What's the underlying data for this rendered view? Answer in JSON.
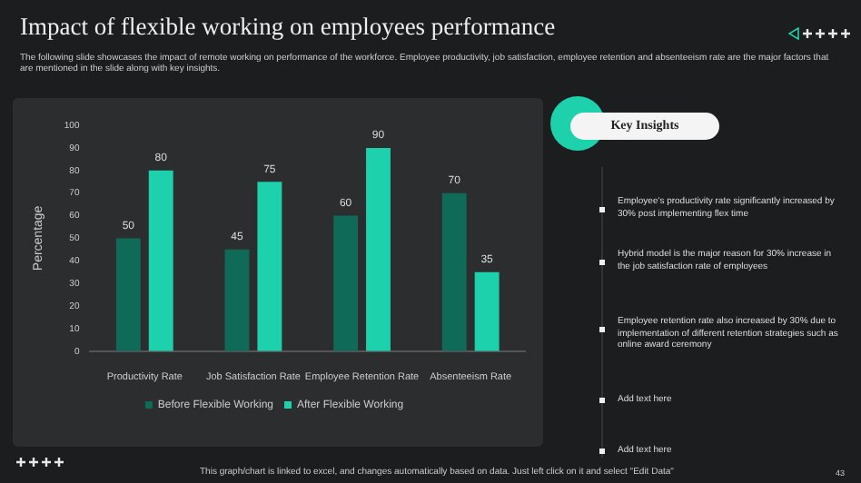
{
  "chart_data": {
    "type": "bar",
    "title": "Impact of flexible working on employees performance",
    "subtitle": "The following slide showcases the impact of remote working on performance of the workforce. Employee productivity, job satisfaction, employee retention and absenteeism rate are the major factors that are mentioned in the slide along with key insights.",
    "ylabel": "Percentage",
    "categories": [
      "Productivity Rate",
      "Job Satisfaction Rate",
      "Employee Retention Rate",
      "Absenteeism Rate"
    ],
    "series": [
      {
        "name": "Before Flexible Working",
        "color": "#0f6b57",
        "values": [
          50,
          45,
          60,
          70
        ]
      },
      {
        "name": "After Flexible Working",
        "color": "#1dd1ad",
        "values": [
          80,
          75,
          90,
          35
        ]
      }
    ],
    "ylim": [
      0,
      100
    ],
    "yticks": [
      0,
      10,
      20,
      30,
      40,
      50,
      60,
      70,
      80,
      90,
      100
    ],
    "data_labels": true,
    "legend": "bottom",
    "grid": false,
    "annotations": [
      "Key Insights",
      "Employee's productivity rate significantly increased by 30% post implementing flex time",
      "Hybrid model is the major reason for 30% increase in the job satisfaction rate of employees",
      "Employee retention rate also increased by 30% due to implementation of different retention strategies such as online award ceremony",
      "Add text here",
      "Add text here",
      "This graph/chart is linked to excel, and changes automatically based on data. Just left click on it and select \"Edit Data\"",
      "43"
    ]
  }
}
